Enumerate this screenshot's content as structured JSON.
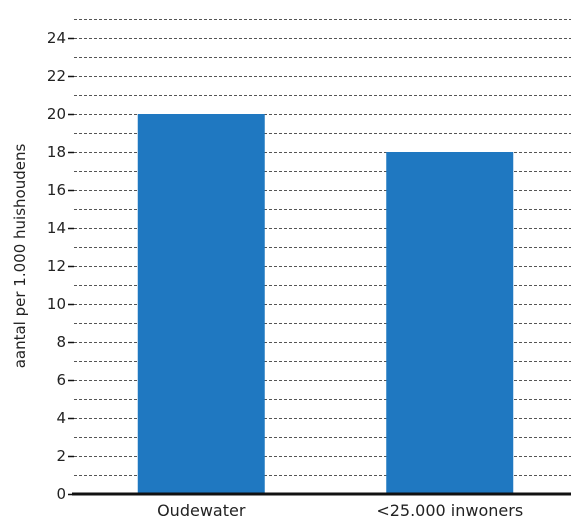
{
  "chart_data": {
    "type": "bar",
    "title": "",
    "xlabel": "",
    "ylabel": "aantal per 1.000 huishoudens",
    "categories": [
      "Oudewater",
      "<25.000 inwoners"
    ],
    "values": [
      20,
      18
    ],
    "ylim": [
      0,
      25
    ],
    "yticks": [
      0,
      2,
      4,
      6,
      8,
      10,
      12,
      14,
      16,
      18,
      20,
      22,
      24
    ],
    "minor_grid_step": 1,
    "grid": true,
    "grid_style": "dashed",
    "bar_color": "#1f78c1",
    "legend": "none"
  }
}
